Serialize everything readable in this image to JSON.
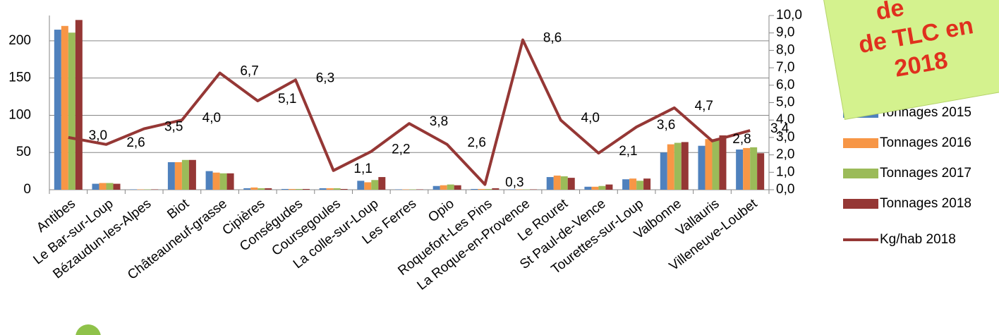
{
  "chart_data": {
    "type": "bar",
    "categories": [
      "Antibes",
      "Le Bar-sur-Loup",
      "Bézaudun-les-Alpes",
      "Biot",
      "Châteauneuf-grasse",
      "Cipières",
      "Conségudes",
      "Coursegoules",
      "La colle-sur-Loup",
      "Les Ferres",
      "Opio",
      "Roquefort-Les Pins",
      "La Roque-en-Provence",
      "Le Rouret",
      "St Paul-de-Vence",
      "Tourettes-sur-Loup",
      "Valbonne",
      "Vallauris",
      "Villeneuve-Loubet"
    ],
    "series": [
      {
        "name": "Tonnages 2015",
        "color": "#4f81bd",
        "values": [
          215,
          8,
          0.5,
          37,
          25,
          2,
          1,
          2,
          12,
          0.5,
          5,
          1,
          0.5,
          17,
          4,
          14,
          50,
          59,
          54
        ]
      },
      {
        "name": "Tonnages 2016",
        "color": "#f79646",
        "values": [
          220,
          9,
          0.5,
          37,
          23,
          3,
          1,
          2,
          10,
          0.5,
          6,
          1,
          0.5,
          19,
          4,
          15,
          61,
          68,
          56
        ]
      },
      {
        "name": "Tonnages 2017",
        "color": "#9bbb59",
        "values": [
          211,
          9,
          0.5,
          40,
          22,
          2,
          1,
          2,
          13,
          0.5,
          7,
          1,
          0.5,
          18,
          5,
          12,
          63,
          68,
          57
        ]
      },
      {
        "name": "Tonnages 2018",
        "color": "#953735",
        "values": [
          228,
          8,
          0.5,
          40,
          22,
          2,
          1,
          1,
          17,
          0.5,
          6,
          2,
          0.5,
          16,
          7,
          15,
          64,
          73,
          49
        ]
      },
      {
        "name": "Kg/hab 2018",
        "color": "#953735",
        "type": "line",
        "axis": "y2",
        "values": [
          3.0,
          2.6,
          3.5,
          4.0,
          6.7,
          5.1,
          6.3,
          1.1,
          2.2,
          3.8,
          2.6,
          0.3,
          8.6,
          4.0,
          2.1,
          3.6,
          4.7,
          2.8,
          3.4
        ],
        "value_labels": [
          "3,0",
          "2,6",
          "3,5",
          "4,0",
          "6,7",
          "5,1",
          "6,3",
          "1,1",
          "2,2",
          "3,8",
          "2,6",
          "0,3",
          "8,6",
          "4,0",
          "2,1",
          "3,6",
          "4,7",
          "2,8",
          "3,4"
        ]
      }
    ],
    "ylim": [
      0,
      234
    ],
    "yticks": [
      0,
      50,
      100,
      150,
      200
    ],
    "y2lim": [
      0,
      10
    ],
    "y2ticks": [
      {
        "value": 0,
        "label": "0,0"
      },
      {
        "value": 1,
        "label": "1,0"
      },
      {
        "value": 2,
        "label": "2,0"
      },
      {
        "value": 3,
        "label": "3,0"
      },
      {
        "value": 4,
        "label": "4,0"
      },
      {
        "value": 5,
        "label": "5,0"
      },
      {
        "value": 6,
        "label": "6,0"
      },
      {
        "value": 7,
        "label": "7,0"
      },
      {
        "value": 8,
        "label": "8,0"
      },
      {
        "value": 9,
        "label": "9,0"
      },
      {
        "value": 10,
        "label": "10,0"
      }
    ],
    "grid": true,
    "note": [
      "de",
      "de TLC en",
      "2018"
    ]
  }
}
